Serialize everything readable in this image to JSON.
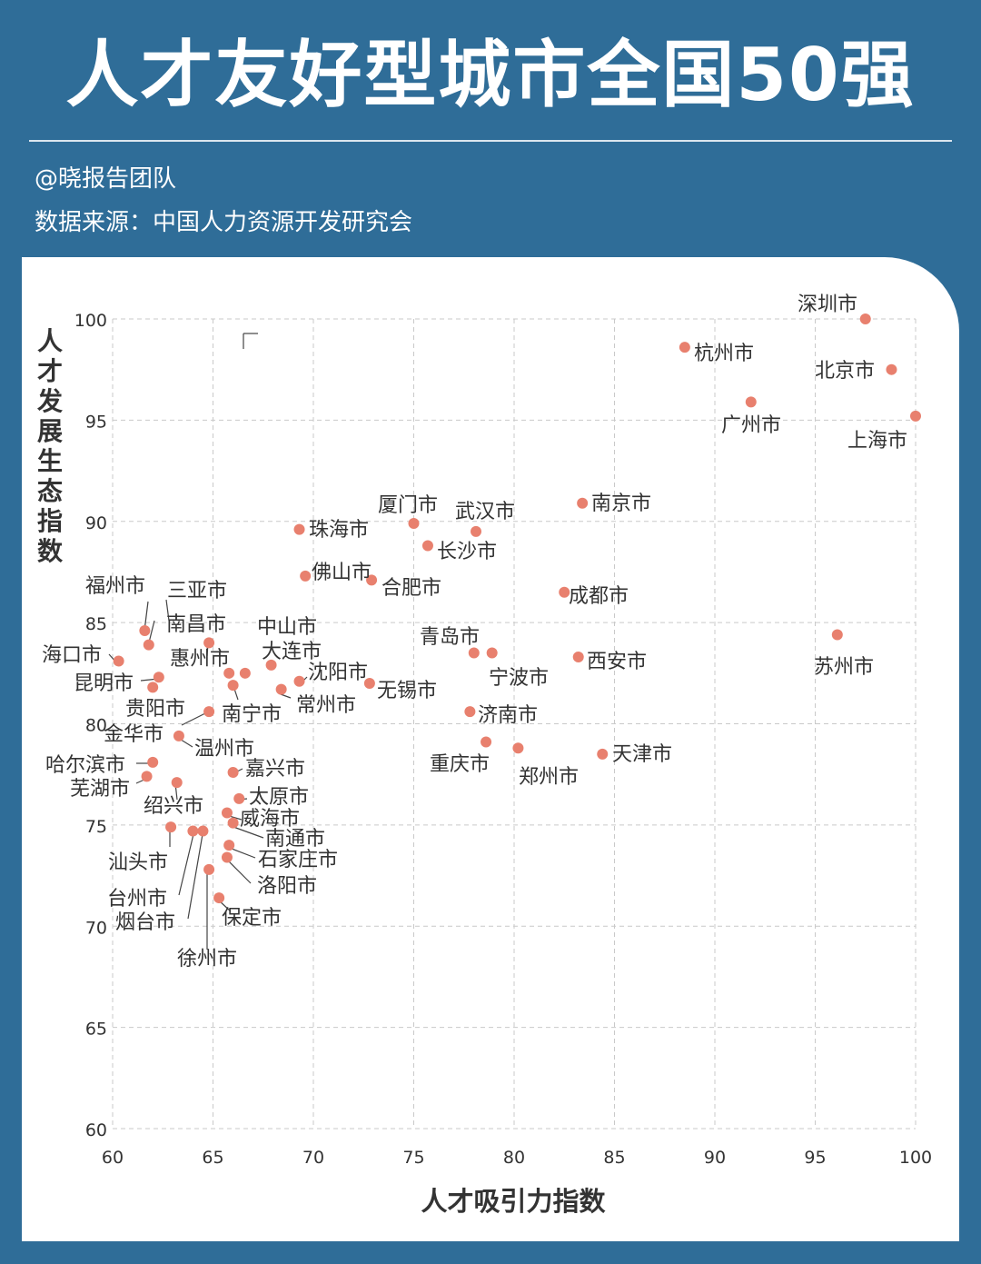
{
  "header": {
    "title": "人才友好型城市全国50强",
    "author": "@晓报告团队",
    "source": "数据来源：中国人力资源开发研究会"
  },
  "colors": {
    "background": "#2f6d98",
    "panel": "#ffffff",
    "point": "#e8806e",
    "grid": "#c9c9c9",
    "text": "#333333"
  },
  "chart_data": {
    "type": "scatter",
    "xlabel": "人才吸引力指数",
    "ylabel": "人才发展生态指数",
    "xlim": [
      60,
      100
    ],
    "ylim": [
      60,
      100
    ],
    "xticks": [
      60,
      65,
      70,
      75,
      80,
      85,
      90,
      95,
      100
    ],
    "yticks": [
      60,
      65,
      70,
      75,
      80,
      85,
      90,
      95,
      100
    ],
    "grid": true,
    "points": [
      {
        "name": "深圳市",
        "x": 97.5,
        "y": 100.0
      },
      {
        "name": "北京市",
        "x": 98.8,
        "y": 97.5
      },
      {
        "name": "上海市",
        "x": 100.0,
        "y": 95.2
      },
      {
        "name": "杭州市",
        "x": 88.5,
        "y": 98.6
      },
      {
        "name": "广州市",
        "x": 91.8,
        "y": 95.9
      },
      {
        "name": "南京市",
        "x": 83.4,
        "y": 90.9
      },
      {
        "name": "成都市",
        "x": 82.5,
        "y": 86.5
      },
      {
        "name": "西安市",
        "x": 83.2,
        "y": 83.3
      },
      {
        "name": "苏州市",
        "x": 96.1,
        "y": 84.4
      },
      {
        "name": "天津市",
        "x": 84.4,
        "y": 78.5
      },
      {
        "name": "郑州市",
        "x": 80.2,
        "y": 78.8
      },
      {
        "name": "重庆市",
        "x": 78.6,
        "y": 79.1
      },
      {
        "name": "济南市",
        "x": 77.8,
        "y": 80.6
      },
      {
        "name": "青岛市",
        "x": 78.0,
        "y": 83.5
      },
      {
        "name": "宁波市",
        "x": 78.9,
        "y": 83.5
      },
      {
        "name": "武汉市",
        "x": 78.1,
        "y": 89.5
      },
      {
        "name": "长沙市",
        "x": 75.7,
        "y": 88.8
      },
      {
        "name": "厦门市",
        "x": 75.0,
        "y": 89.9
      },
      {
        "name": "合肥市",
        "x": 72.9,
        "y": 87.1
      },
      {
        "name": "无锡市",
        "x": 72.8,
        "y": 82.0
      },
      {
        "name": "珠海市",
        "x": 69.3,
        "y": 89.6
      },
      {
        "name": "佛山市",
        "x": 69.6,
        "y": 87.3
      },
      {
        "name": "沈阳市",
        "x": 69.3,
        "y": 82.1
      },
      {
        "name": "常州市",
        "x": 68.4,
        "y": 81.7
      },
      {
        "name": "大连市",
        "x": 67.9,
        "y": 82.9
      },
      {
        "name": "中山市",
        "x": 66.6,
        "y": 82.5
      },
      {
        "name": "南宁市",
        "x": 66.0,
        "y": 81.9
      },
      {
        "name": "惠州市",
        "x": 65.8,
        "y": 82.5
      },
      {
        "name": "南昌市",
        "x": 64.8,
        "y": 84.0
      },
      {
        "name": "三亚市",
        "x": 61.8,
        "y": 83.9
      },
      {
        "name": "福州市",
        "x": 61.6,
        "y": 84.6
      },
      {
        "name": "海口市",
        "x": 60.3,
        "y": 83.1
      },
      {
        "name": "昆明市",
        "x": 62.3,
        "y": 82.3
      },
      {
        "name": "贵阳市",
        "x": 62.0,
        "y": 81.8
      },
      {
        "name": "金华市",
        "x": 64.8,
        "y": 80.6
      },
      {
        "name": "温州市",
        "x": 63.3,
        "y": 79.4
      },
      {
        "name": "哈尔滨市",
        "x": 62.0,
        "y": 78.1
      },
      {
        "name": "芜湖市",
        "x": 61.7,
        "y": 77.4
      },
      {
        "name": "绍兴市",
        "x": 63.2,
        "y": 77.1
      },
      {
        "name": "嘉兴市",
        "x": 66.0,
        "y": 77.6
      },
      {
        "name": "太原市",
        "x": 66.3,
        "y": 76.3
      },
      {
        "name": "威海市",
        "x": 65.7,
        "y": 75.6
      },
      {
        "name": "南通市",
        "x": 66.0,
        "y": 75.1
      },
      {
        "name": "石家庄市",
        "x": 65.8,
        "y": 74.0
      },
      {
        "name": "洛阳市",
        "x": 65.7,
        "y": 73.4
      },
      {
        "name": "汕头市",
        "x": 62.9,
        "y": 74.9
      },
      {
        "name": "台州市",
        "x": 64.0,
        "y": 74.7
      },
      {
        "name": "烟台市",
        "x": 64.5,
        "y": 74.7
      },
      {
        "name": "徐州市",
        "x": 64.8,
        "y": 72.8
      },
      {
        "name": "保定市",
        "x": 65.3,
        "y": 71.4
      }
    ]
  }
}
